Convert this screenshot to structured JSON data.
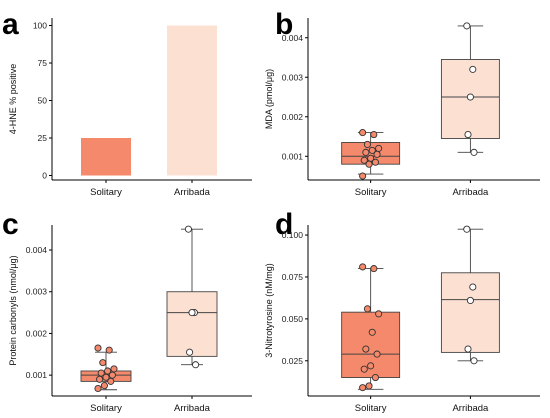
{
  "colors": {
    "solitary": "#F5896B",
    "arribada": "#FCE1D3",
    "open_point": "#FFFFFF"
  },
  "chart_data": [
    {
      "panel": "a",
      "type": "bar",
      "categories": [
        "Solitary",
        "Arribada"
      ],
      "values": [
        25,
        100
      ],
      "ylabel": "4-HNE   % positive",
      "ylim": [
        -3,
        105
      ],
      "yticks": [
        0,
        25,
        50,
        75,
        100
      ],
      "ytick_labels": [
        "0",
        "25",
        "50",
        "75",
        "100"
      ],
      "grid": false
    },
    {
      "panel": "b",
      "type": "box",
      "categories": [
        "Solitary",
        "Arribada"
      ],
      "ylabel": "MDA (pmol/μg)",
      "ylim": [
        0.0004,
        0.0045
      ],
      "yticks": [
        0.001,
        0.002,
        0.003,
        0.004
      ],
      "ytick_labels": [
        "0.001",
        "0.002",
        "0.003",
        "0.004"
      ],
      "grid": false,
      "boxes": [
        {
          "name": "Solitary",
          "whisker_low": 0.00055,
          "q1": 0.0008,
          "median": 0.001,
          "q3": 0.00135,
          "whisker_high": 0.0016
        },
        {
          "name": "Arribada",
          "whisker_low": 0.0011,
          "q1": 0.00145,
          "median": 0.0025,
          "q3": 0.00345,
          "whisker_high": 0.0043
        }
      ],
      "points": [
        {
          "category": "Solitary",
          "values": [
            0.0016,
            0.00155,
            0.0013,
            0.0012,
            0.00115,
            0.0011,
            0.00105,
            0.00095,
            0.0009,
            0.00085,
            0.0008,
            0.0005
          ]
        },
        {
          "category": "Arribada",
          "values": [
            0.0043,
            0.0032,
            0.0025,
            0.00155,
            0.0011
          ]
        }
      ]
    },
    {
      "panel": "c",
      "type": "box",
      "categories": [
        "Solitary",
        "Arribada"
      ],
      "ylabel": "Protein carbonyls (nmol/μg)",
      "ylim": [
        0.0005,
        0.0046
      ],
      "yticks": [
        0.001,
        0.002,
        0.003,
        0.004
      ],
      "ytick_labels": [
        "0.001",
        "0.002",
        "0.003",
        "0.004"
      ],
      "grid": false,
      "boxes": [
        {
          "name": "Solitary",
          "whisker_low": 0.00065,
          "q1": 0.00085,
          "median": 0.001,
          "q3": 0.0011,
          "whisker_high": 0.00155
        },
        {
          "name": "Arribada",
          "whisker_low": 0.00125,
          "q1": 0.00145,
          "median": 0.0025,
          "q3": 0.003,
          "whisker_high": 0.0045
        }
      ],
      "points": [
        {
          "category": "Solitary",
          "values": [
            0.00165,
            0.0016,
            0.0013,
            0.00115,
            0.0011,
            0.00105,
            0.001,
            0.00095,
            0.0009,
            0.00085,
            0.00075,
            0.00068
          ]
        },
        {
          "category": "Arribada",
          "values": [
            0.0045,
            0.0025,
            0.0025,
            0.00155,
            0.00125
          ]
        }
      ]
    },
    {
      "panel": "d",
      "type": "box",
      "categories": [
        "Solitary",
        "Arribada"
      ],
      "ylabel": "3-Nitrotyrosine (nM/mg)",
      "ylim": [
        0.004,
        0.106
      ],
      "yticks": [
        0.025,
        0.05,
        0.075,
        0.1
      ],
      "ytick_labels": [
        "0.025",
        "0.050",
        "0.075",
        "0.100"
      ],
      "grid": false,
      "boxes": [
        {
          "name": "Solitary",
          "whisker_low": 0.008,
          "q1": 0.015,
          "median": 0.029,
          "q3": 0.054,
          "whisker_high": 0.08
        },
        {
          "name": "Arribada",
          "whisker_low": 0.025,
          "q1": 0.03,
          "median": 0.0615,
          "q3": 0.0775,
          "whisker_high": 0.1035
        }
      ],
      "points": [
        {
          "category": "Solitary",
          "values": [
            0.081,
            0.08,
            0.056,
            0.053,
            0.042,
            0.032,
            0.029,
            0.022,
            0.02,
            0.015,
            0.01,
            0.009
          ]
        },
        {
          "category": "Arribada",
          "values": [
            0.1035,
            0.069,
            0.061,
            0.032,
            0.025
          ]
        }
      ]
    }
  ]
}
